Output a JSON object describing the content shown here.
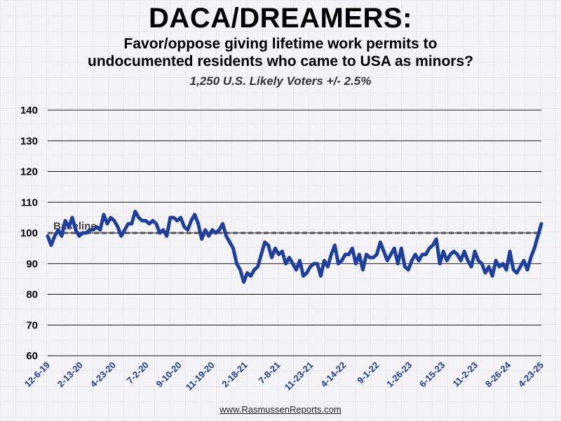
{
  "chart_data": {
    "type": "line",
    "title": "DACA/DREAMERS:",
    "subtitle_lines": [
      "Favor/oppose giving lifetime work permits to",
      "undocumented residents who came to USA as minors?"
    ],
    "note": "1,250 U.S. Likely Voters +/- 2.5%",
    "ylim": [
      60,
      140
    ],
    "yticks": [
      60,
      70,
      80,
      90,
      100,
      110,
      120,
      130,
      140
    ],
    "grid": true,
    "baseline": {
      "label": "Baseline",
      "value": 100
    },
    "x_tick_labels": [
      "12-6-19",
      "2-13-20",
      "4-23-20",
      "7-2-20",
      "9-10-20",
      "11-19-20",
      "2-18-21",
      "7-8-21",
      "11-23-21",
      "4-14-22",
      "9-1-22",
      "1-26-23",
      "6-15-23",
      "11-2-23",
      "8-26-24",
      "4-23-25"
    ],
    "series": [
      {
        "color": "#1f3f9e",
        "values": [
          99,
          96,
          99,
          101,
          99,
          104,
          102,
          105,
          101,
          99,
          100,
          100,
          101,
          101,
          102,
          101,
          106,
          103,
          105,
          104,
          102,
          99,
          101,
          103,
          103,
          107,
          105,
          104,
          104,
          103,
          104,
          103,
          100,
          101,
          99,
          105,
          105,
          104,
          105,
          102,
          101,
          104,
          106,
          103,
          98,
          101,
          99,
          101,
          100,
          101,
          103,
          99,
          97,
          95,
          90,
          88,
          84,
          87,
          86,
          88,
          89,
          93,
          97,
          96,
          92,
          95,
          93,
          94,
          90,
          92,
          90,
          88,
          91,
          86,
          87,
          89,
          90,
          90,
          86,
          91,
          89,
          93,
          96,
          90,
          91,
          93,
          93,
          95,
          90,
          93,
          88,
          93,
          92,
          92,
          93,
          97,
          94,
          91,
          93,
          95,
          90,
          95,
          89,
          88,
          91,
          93,
          91,
          93,
          93,
          95,
          96,
          98,
          90,
          94,
          91,
          93,
          94,
          93,
          91,
          94,
          91,
          89,
          94,
          91,
          90,
          87,
          89,
          86,
          91,
          89,
          90,
          88,
          94,
          88,
          87,
          89,
          91,
          88,
          92,
          95,
          99,
          103
        ]
      }
    ]
  },
  "source": "www.RasmussenReports.com"
}
